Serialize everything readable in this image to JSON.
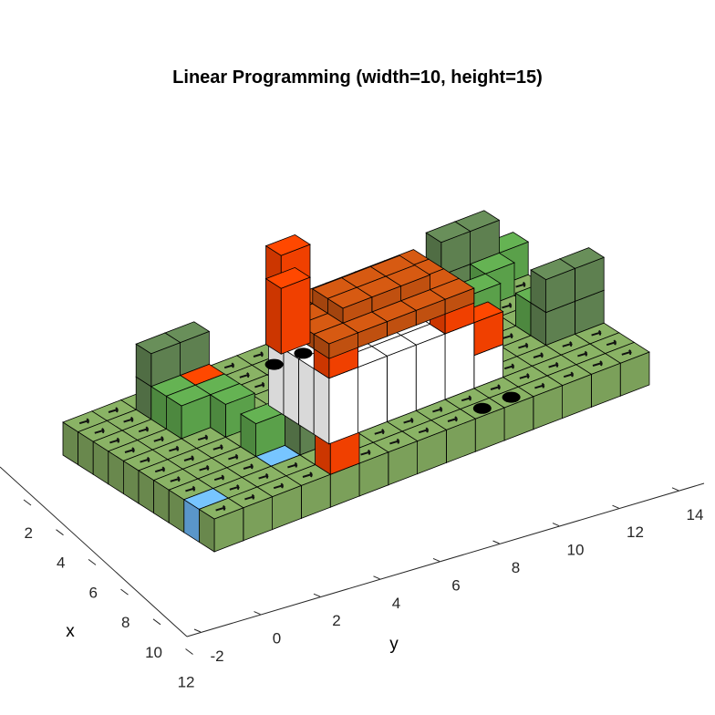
{
  "chart_data": {
    "type": "3d-voxel-grid",
    "title": "Linear Programming (width=10, height=15)",
    "xlabel": "x",
    "ylabel": "y",
    "x_ticks": [
      "2",
      "4",
      "6",
      "8",
      "10",
      "12"
    ],
    "y_ticks": [
      "-2",
      "0",
      "2",
      "4",
      "6",
      "8",
      "10",
      "12",
      "14"
    ],
    "xlim": [
      1,
      12
    ],
    "ylim": [
      -2,
      15
    ],
    "grid_width": 10,
    "grid_height": 15,
    "colors": {
      "ground": "#7ba05a",
      "obstacle_light": "#5aa04a",
      "obstacle_dark": "#5e8050",
      "water": "#6ab0ec",
      "goal": "#ffe000",
      "hot": "#f04000",
      "roof": "#c05010",
      "wall": "#ffffff",
      "edge": "#000000"
    },
    "blocks": [
      {
        "type": "obstacle_dark",
        "x": 1,
        "y": 2,
        "height": 2
      },
      {
        "type": "obstacle_dark",
        "x": 1,
        "y": 3,
        "height": 2
      },
      {
        "type": "hot",
        "x": 2,
        "y": 3,
        "height": 1
      },
      {
        "type": "obstacle_light",
        "x": 2,
        "y": 2,
        "height": 1
      },
      {
        "type": "obstacle_light",
        "x": 3,
        "y": 2,
        "height": 1
      },
      {
        "type": "obstacle_light",
        "x": 3,
        "y": 3,
        "height": 1
      },
      {
        "type": "obstacle_light",
        "x": 4,
        "y": 3,
        "height": 1
      },
      {
        "type": "obstacle_dark",
        "x": 1,
        "y": 12,
        "height": 2
      },
      {
        "type": "obstacle_dark",
        "x": 1,
        "y": 13,
        "height": 2
      },
      {
        "type": "obstacle_light",
        "x": 2,
        "y": 13,
        "height": 1
      },
      {
        "type": "obstacle_light",
        "x": 1,
        "y": 14,
        "height": 1
      },
      {
        "type": "obstacle_light",
        "x": 3,
        "y": 12,
        "height": 1
      },
      {
        "type": "obstacle_dark",
        "x": 6,
        "y": 13,
        "height": 2
      },
      {
        "type": "obstacle_dark",
        "x": 6,
        "y": 14,
        "height": 2
      },
      {
        "type": "obstacle_light",
        "x": 5,
        "y": 13,
        "height": 1
      },
      {
        "type": "obstacle_dark",
        "x": 7,
        "y": 4,
        "height": 2
      },
      {
        "type": "obstacle_light",
        "x": 6,
        "y": 4,
        "height": 1
      },
      {
        "type": "obstacle_light",
        "x": 6,
        "y": 3,
        "height": 1
      },
      {
        "type": "hot",
        "x": 9,
        "y": 4,
        "height": 1
      },
      {
        "type": "hot",
        "x": 0,
        "y": 7,
        "height": 3
      },
      {
        "type": "goal",
        "x": 10,
        "y": 4,
        "height": 0
      },
      {
        "type": "water",
        "x": 8,
        "y": 0,
        "height": 0
      },
      {
        "type": "water",
        "x": 7,
        "y": 3,
        "height": 0
      },
      {
        "type": "water",
        "x": 5,
        "y": 11,
        "height": 0
      },
      {
        "type": "hot",
        "x": 4,
        "y": 5,
        "height": 2
      },
      {
        "type": "hot",
        "x": 4,
        "y": 10,
        "height": 2
      },
      {
        "type": "hot",
        "x": 7,
        "y": 6,
        "height": 2
      },
      {
        "type": "hot",
        "x": 7,
        "y": 10,
        "height": 2
      }
    ],
    "markers": [
      {
        "x": 1,
        "y": 6
      },
      {
        "x": 1,
        "y": 7
      },
      {
        "x": 9,
        "y": 9
      },
      {
        "x": 9,
        "y": 10
      }
    ]
  }
}
